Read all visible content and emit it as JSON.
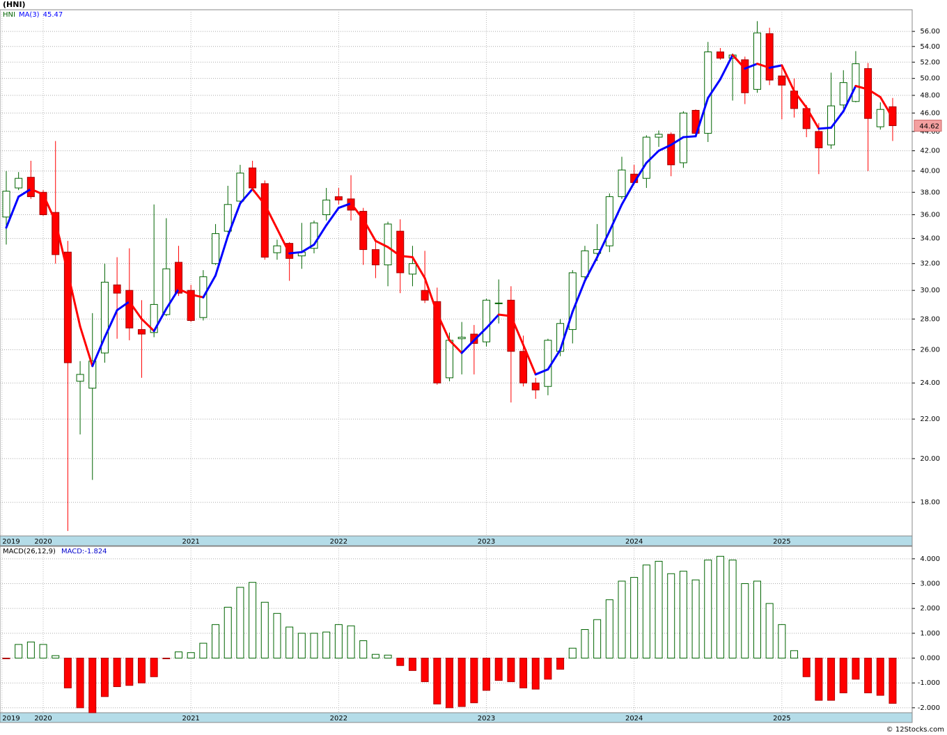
{
  "chart_data": [
    {
      "type": "candlestick",
      "title": "(HNI)",
      "name": "HNI",
      "up_color": "#006400",
      "down_color": "#ff0000",
      "log_scale": true,
      "grid": true,
      "open": [
        35.8,
        38.4,
        39.4,
        38.0,
        36.2,
        32.9,
        24.1,
        23.7,
        25.8,
        30.4,
        30.0,
        27.3,
        27.1,
        28.3,
        32.1,
        30.0,
        28.1,
        32.0,
        34.6,
        37.2,
        40.3,
        38.8,
        32.85,
        33.6,
        32.6,
        33.2,
        36.0,
        37.6,
        37.4,
        36.3,
        33.1,
        31.9,
        34.6,
        31.2,
        30.0,
        29.2,
        24.3,
        26.7,
        27.0,
        26.5,
        29.1,
        29.3,
        25.9,
        24.0,
        23.8,
        25.9,
        27.3,
        31.0,
        32.8,
        33.4,
        37.6,
        39.7,
        39.3,
        43.4,
        43.7,
        40.8,
        46.3,
        43.8,
        53.3,
        52.5,
        52.3,
        48.7,
        55.7,
        50.3,
        48.5,
        46.5,
        44.0,
        42.6,
        46.9,
        47.3,
        51.2,
        44.5,
        46.7
      ],
      "high": [
        40.0,
        39.9,
        41.0,
        38.2,
        43.0,
        33.8,
        25.3,
        28.4,
        32.0,
        32.5,
        33.2,
        29.3,
        36.9,
        35.7,
        33.4,
        30.4,
        31.5,
        35.2,
        38.6,
        40.6,
        41.0,
        39.1,
        33.9,
        33.7,
        35.3,
        35.5,
        38.4,
        38.4,
        39.6,
        36.6,
        33.8,
        35.4,
        35.6,
        33.4,
        33.0,
        30.2,
        27.1,
        27.8,
        27.6,
        29.4,
        30.8,
        30.3,
        26.9,
        24.3,
        26.7,
        28.0,
        31.5,
        33.4,
        35.2,
        37.9,
        41.4,
        40.6,
        43.6,
        44.1,
        43.9,
        46.2,
        46.4,
        54.6,
        53.8,
        53.1,
        52.7,
        57.4,
        56.5,
        51.5,
        50.0,
        46.9,
        44.9,
        50.7,
        51.0,
        53.4,
        51.9,
        47.2,
        47.7
      ],
      "low": [
        33.5,
        38.2,
        37.4,
        35.9,
        32.0,
        16.8,
        21.2,
        19.0,
        25.2,
        26.7,
        26.6,
        24.3,
        26.8,
        28.2,
        29.6,
        27.8,
        27.9,
        31.9,
        34.5,
        37.0,
        38.2,
        32.3,
        32.3,
        30.7,
        31.6,
        32.8,
        35.5,
        36.9,
        35.5,
        31.9,
        30.9,
        30.3,
        29.8,
        30.3,
        29.1,
        23.9,
        24.1,
        24.5,
        24.5,
        26.2,
        27.7,
        22.9,
        23.8,
        23.1,
        23.3,
        25.6,
        26.4,
        30.8,
        32.2,
        32.9,
        37.4,
        38.7,
        38.4,
        42.4,
        39.5,
        40.3,
        43.4,
        42.9,
        52.3,
        47.4,
        47.0,
        48.3,
        49.2,
        45.3,
        45.5,
        43.4,
        39.7,
        42.2,
        46.5,
        47.2,
        40.0,
        44.2,
        43.0
      ],
      "close": [
        38.1,
        39.3,
        37.6,
        36.0,
        32.7,
        25.2,
        24.5,
        25.3,
        30.6,
        29.8,
        27.4,
        27.0,
        29.0,
        31.6,
        29.8,
        27.9,
        31.0,
        34.4,
        36.9,
        39.8,
        38.4,
        32.5,
        33.4,
        32.4,
        32.9,
        35.3,
        37.3,
        37.3,
        36.4,
        33.1,
        31.9,
        35.2,
        31.3,
        32.0,
        29.3,
        24.0,
        26.6,
        26.8,
        26.4,
        29.3,
        29.1,
        25.9,
        24.0,
        23.6,
        26.6,
        27.7,
        31.3,
        33.0,
        33.1,
        37.6,
        40.1,
        38.9,
        43.4,
        43.7,
        40.6,
        46.0,
        43.8,
        53.3,
        52.5,
        52.9,
        48.3,
        55.8,
        49.8,
        49.2,
        46.5,
        44.3,
        42.3,
        46.8,
        49.5,
        51.8,
        45.4,
        46.4,
        44.62
      ],
      "series": [
        {
          "name": "MA(3)",
          "up_color": "#0000ff",
          "down_color": "#ff0000",
          "values": [
            34.9,
            37.6,
            38.3,
            37.8,
            35.4,
            31.3,
            27.5,
            25.0,
            26.8,
            28.6,
            29.2,
            28.0,
            27.2,
            28.7,
            30.1,
            29.7,
            29.5,
            31.1,
            34.2,
            37.0,
            38.3,
            36.9,
            34.8,
            32.8,
            32.9,
            33.5,
            35.1,
            36.6,
            37.0,
            35.6,
            33.8,
            33.3,
            32.6,
            32.5,
            30.9,
            28.4,
            26.6,
            25.8,
            26.6,
            27.4,
            28.3,
            28.2,
            26.3,
            24.5,
            24.8,
            26.0,
            28.5,
            30.7,
            32.5,
            34.6,
            36.9,
            38.9,
            40.8,
            42.0,
            42.6,
            43.4,
            43.5,
            47.7,
            49.9,
            52.9,
            51.2,
            51.8,
            51.3,
            51.6,
            48.5,
            46.6,
            44.3,
            44.4,
            46.2,
            49.1,
            48.7,
            47.8,
            45.47
          ]
        }
      ],
      "ylim": [
        16.6,
        59.0
      ],
      "yticks": [
        {
          "value": 18,
          "label": "18.00"
        },
        {
          "value": 20,
          "label": "20.00"
        },
        {
          "value": 22,
          "label": "22.00"
        },
        {
          "value": 24,
          "label": "24.00"
        },
        {
          "value": 26,
          "label": "26.00"
        },
        {
          "value": 28,
          "label": "28.00"
        },
        {
          "value": 30,
          "label": "30.00"
        },
        {
          "value": 32,
          "label": "32.00"
        },
        {
          "value": 34,
          "label": "34.00"
        },
        {
          "value": 36,
          "label": "36.00"
        },
        {
          "value": 38,
          "label": "38.00"
        },
        {
          "value": 40,
          "label": "40.00"
        },
        {
          "value": 42,
          "label": "42.00"
        },
        {
          "value": 44,
          "label": "44.00"
        },
        {
          "value": 46,
          "label": "46.00"
        },
        {
          "value": 48,
          "label": "48.00"
        },
        {
          "value": 50,
          "label": "50.00"
        },
        {
          "value": 52,
          "label": "52.00"
        },
        {
          "value": 54,
          "label": "54.00"
        },
        {
          "value": 56,
          "label": "56.00"
        }
      ],
      "xticks": [
        {
          "value": -0.35,
          "label": "2019"
        },
        {
          "value": 3,
          "label": "2020"
        },
        {
          "value": 15,
          "label": "2021"
        },
        {
          "value": 27,
          "label": "2022"
        },
        {
          "value": 39,
          "label": "2023"
        },
        {
          "value": 51,
          "label": "2024"
        },
        {
          "value": 63,
          "label": "2025"
        }
      ]
    },
    {
      "type": "bar",
      "title": "MACD(26,12,9)",
      "grid": true,
      "series": [
        {
          "name": "MACD:",
          "up_color": "#006400",
          "down_color": "#ff0000",
          "values": [
            -0.02,
            0.55,
            0.65,
            0.55,
            0.1,
            -1.2,
            -2.0,
            -2.2,
            -1.55,
            -1.15,
            -1.1,
            -1.0,
            -0.75,
            -0.02,
            0.25,
            0.22,
            0.6,
            1.35,
            2.05,
            2.85,
            3.05,
            2.25,
            1.8,
            1.25,
            1.0,
            1.0,
            1.05,
            1.35,
            1.3,
            0.7,
            0.15,
            0.12,
            -0.3,
            -0.5,
            -0.95,
            -1.85,
            -2.0,
            -1.95,
            -1.8,
            -1.3,
            -0.9,
            -0.95,
            -1.2,
            -1.25,
            -0.85,
            -0.45,
            0.4,
            1.15,
            1.55,
            2.35,
            3.1,
            3.25,
            3.75,
            3.9,
            3.4,
            3.5,
            3.15,
            3.95,
            4.1,
            3.95,
            3.0,
            3.1,
            2.2,
            1.35,
            0.3,
            -0.75,
            -1.7,
            -1.7,
            -1.4,
            -0.85,
            -1.4,
            -1.5,
            -1.824
          ]
        }
      ],
      "ylim": [
        -2.2,
        4.5
      ],
      "yticks": [
        {
          "value": -2,
          "label": "-2.000"
        },
        {
          "value": -1,
          "label": "-1.000"
        },
        {
          "value": 0,
          "label": "0.000"
        },
        {
          "value": 1,
          "label": "1.000"
        },
        {
          "value": 2,
          "label": "2.000"
        },
        {
          "value": 3,
          "label": "3.000"
        },
        {
          "value": 4,
          "label": "4.000"
        }
      ],
      "xticks": [
        {
          "value": -0.35,
          "label": "2019"
        },
        {
          "value": 3,
          "label": "2020"
        },
        {
          "value": 15,
          "label": "2021"
        },
        {
          "value": 27,
          "label": "2022"
        },
        {
          "value": 39,
          "label": "2023"
        },
        {
          "value": 51,
          "label": "2024"
        },
        {
          "value": 63,
          "label": "2025"
        }
      ]
    }
  ],
  "footer": "© 12Stocks.com"
}
